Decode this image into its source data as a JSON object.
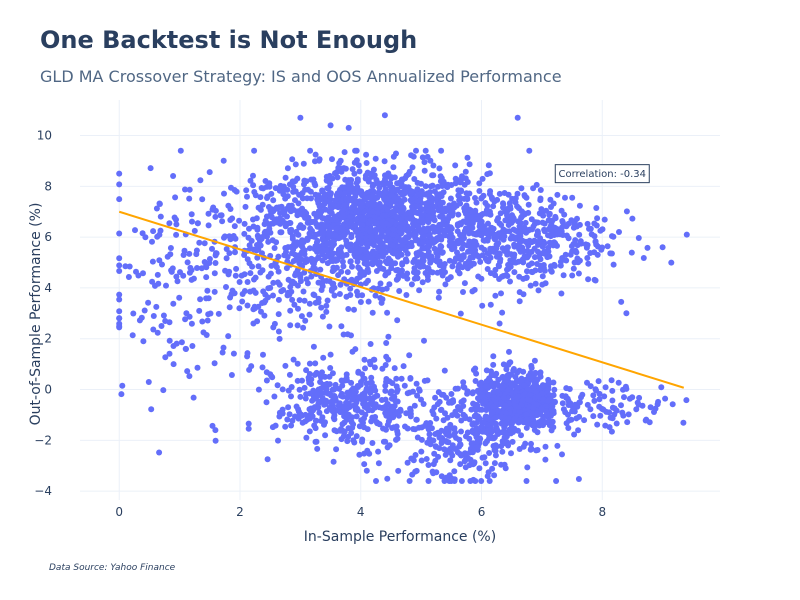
{
  "title": "One Backtest is Not Enough",
  "subtitle": "GLD MA Crossover Strategy: IS and OOS Annualized Performance",
  "source": "Data Source: Yahoo Finance",
  "colors": {
    "marker": "#636efa",
    "trendline": "#ffa500",
    "grid": "#ebf0f8",
    "text": "#2a3f5f"
  },
  "chart_data": {
    "type": "scatter",
    "title": "One Backtest is Not Enough",
    "subtitle": "GLD MA Crossover Strategy: IS and OOS Annualized Performance",
    "xlabel": "In-Sample Performance (%)",
    "ylabel": "Out-of-Sample Performance (%)",
    "xlim": [
      -0.65,
      9.95
    ],
    "ylim": [
      -4.35,
      11.4
    ],
    "xticks": [
      0,
      2,
      4,
      6,
      8
    ],
    "yticks": [
      -4,
      -2,
      0,
      2,
      4,
      6,
      8,
      10
    ],
    "grid": true,
    "series": [
      {
        "type": "scatter",
        "clusters": [
          {
            "x_center": 4.3,
            "y_center": 6.6,
            "x_spread": 0.9,
            "y_spread": 1.1,
            "count": 1300
          },
          {
            "x_center": 2.8,
            "y_center": 5.2,
            "x_spread": 1.2,
            "y_spread": 1.8,
            "count": 500
          },
          {
            "x_center": 6.5,
            "y_center": 6.0,
            "x_spread": 0.8,
            "y_spread": 1.0,
            "count": 500
          },
          {
            "x_center": 6.6,
            "y_center": -0.5,
            "x_spread": 0.35,
            "y_spread": 0.6,
            "count": 650
          },
          {
            "x_center": 5.7,
            "y_center": -1.8,
            "x_spread": 0.6,
            "y_spread": 1.0,
            "count": 300
          },
          {
            "x_center": 3.8,
            "y_center": -0.6,
            "x_spread": 0.6,
            "y_spread": 0.8,
            "count": 400
          },
          {
            "x_center": 8.2,
            "y_center": -0.6,
            "x_spread": 0.5,
            "y_spread": 0.5,
            "count": 80
          },
          {
            "x_center": 1.1,
            "y_center": 3.5,
            "x_spread": 0.7,
            "y_spread": 2.2,
            "count": 80
          }
        ],
        "points": [
          [
            0.0,
            2.8
          ],
          [
            0.4,
            1.9
          ],
          [
            0.7,
            2.5
          ],
          [
            0.9,
            1.0
          ],
          [
            1.1,
            1.6
          ],
          [
            3.0,
            10.7
          ],
          [
            3.5,
            10.4
          ],
          [
            3.8,
            10.3
          ],
          [
            4.4,
            10.8
          ],
          [
            6.6,
            10.7
          ],
          [
            9.4,
            6.1
          ],
          [
            9.0,
            5.6
          ],
          [
            8.8,
            -0.7
          ],
          [
            8.4,
            3.0
          ],
          [
            4.3,
            -2.9
          ],
          [
            5.2,
            -3.3
          ],
          [
            5.5,
            -3.6
          ],
          [
            6.4,
            -3.1
          ],
          [
            3.1,
            -1.9
          ],
          [
            4.1,
            -3.2
          ],
          [
            7.6,
            -1.6
          ],
          [
            6.3,
            2.6
          ],
          [
            2.5,
            0.6
          ],
          [
            1.2,
            6.9
          ]
        ]
      },
      {
        "type": "line",
        "x": [
          0.0,
          9.35
        ],
        "y": [
          7.0,
          0.07
        ]
      }
    ],
    "annotations": [
      {
        "text": "Correlation: -0.34",
        "x": 8.0,
        "y": 8.5
      }
    ]
  }
}
